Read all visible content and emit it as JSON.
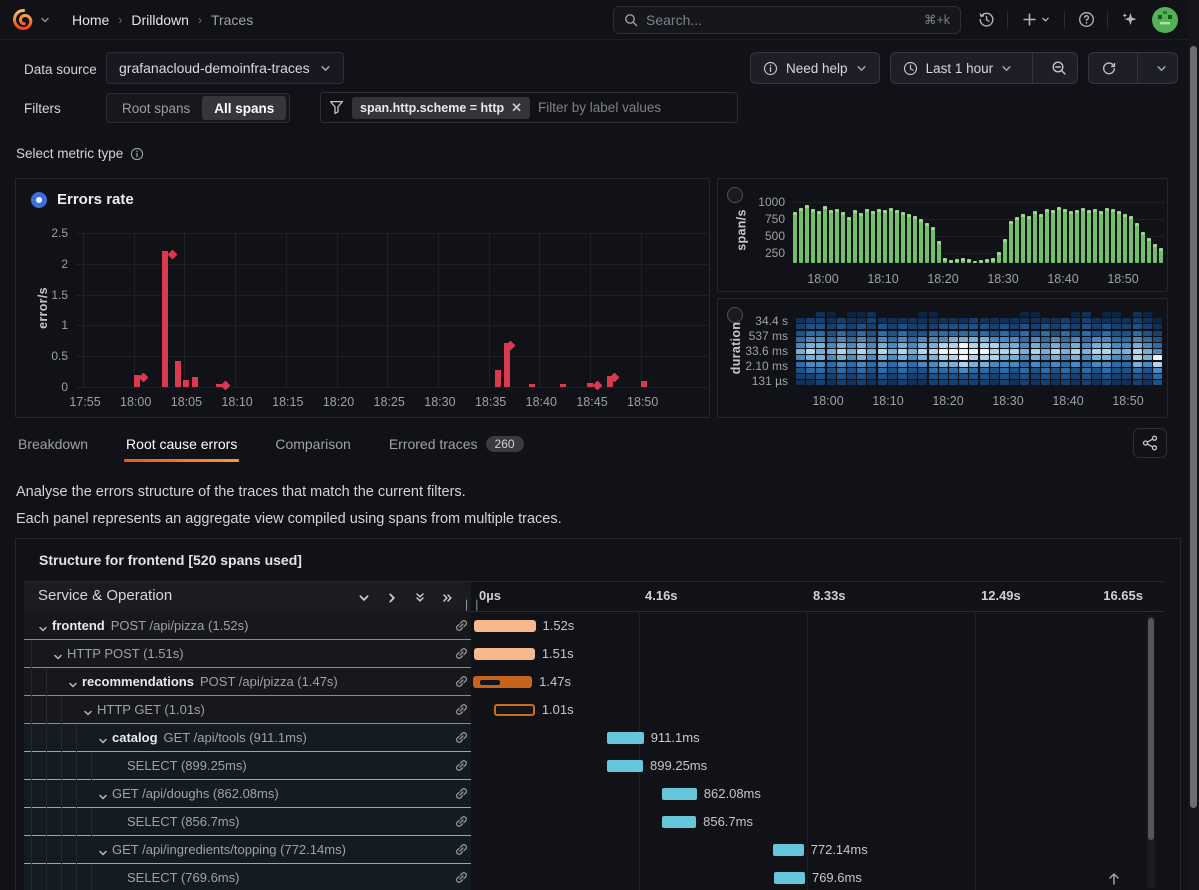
{
  "nav": {
    "breadcrumb": [
      "Home",
      "Drilldown",
      "Traces"
    ],
    "search_placeholder": "Search...",
    "search_shortcut": "⌘+k"
  },
  "controls": {
    "datasource_label": "Data source",
    "datasource_value": "grafanacloud-demoinfra-traces",
    "need_help_label": "Need help",
    "time_range_label": "Last 1 hour"
  },
  "filters": {
    "label": "Filters",
    "segments": [
      "Root spans",
      "All spans"
    ],
    "active_segment": "All spans",
    "chip": "span.http.scheme = http",
    "placeholder": "Filter by label values"
  },
  "metric_select": {
    "label": "Select metric type",
    "selected_option": "Errors rate"
  },
  "tabs": {
    "items": [
      {
        "label": "Breakdown",
        "active": false
      },
      {
        "label": "Root cause errors",
        "active": true
      },
      {
        "label": "Comparison",
        "active": false
      },
      {
        "label": "Errored traces",
        "active": false,
        "badge": "260"
      }
    ]
  },
  "description": {
    "line1": "Analyse the errors structure of the traces that match the current filters.",
    "line2": "Each panel represents an aggregate view compiled using spans from multiple traces."
  },
  "structure": {
    "title": "Structure for frontend [520 spans used]",
    "table_header": "Service & Operation",
    "timeline_ticks": [
      "0µs",
      "4.16s",
      "8.33s",
      "12.49s",
      "16.65s"
    ],
    "accent_colors": {
      "orange": "#cf7a33",
      "cyan": "#58bdd0"
    },
    "rows": [
      {
        "level": 0,
        "name": "frontend",
        "op": "POST /api/pizza (1.52s)",
        "chevron": true,
        "accent": "orange",
        "blue_bg": false,
        "bar": {
          "type": "salmon",
          "left": 0.005,
          "width": 0.091,
          "label": "1.52s"
        }
      },
      {
        "level": 1,
        "name": "",
        "op": "HTTP POST (1.51s)",
        "chevron": true,
        "accent": "orange",
        "blue_bg": false,
        "bar": {
          "type": "salmon",
          "left": 0.005,
          "width": 0.09,
          "label": "1.51s"
        }
      },
      {
        "level": 2,
        "name": "recommendations",
        "op": "POST /api/pizza (1.47s)",
        "chevron": true,
        "accent": "orange",
        "blue_bg": false,
        "bar": {
          "type": "orange-self",
          "left": 0.003,
          "width": 0.088,
          "label": "1.47s"
        }
      },
      {
        "level": 3,
        "name": "",
        "op": "HTTP GET (1.01s)",
        "chevron": true,
        "accent": "orange",
        "blue_bg": false,
        "bar": {
          "type": "orange-outline",
          "left": 0.034,
          "width": 0.061,
          "label": "1.01s"
        }
      },
      {
        "level": 4,
        "name": "catalog",
        "op": "GET /api/tools (911.1ms)",
        "chevron": true,
        "accent": "cyan",
        "blue_bg": true,
        "bar": {
          "type": "cyan",
          "left": 0.202,
          "width": 0.055,
          "label": "911.1ms"
        }
      },
      {
        "level": 5,
        "name": "",
        "op": "SELECT (899.25ms)",
        "chevron": false,
        "accent": "cyan",
        "blue_bg": true,
        "bar": {
          "type": "cyan",
          "left": 0.202,
          "width": 0.054,
          "label": "899.25ms"
        }
      },
      {
        "level": 4,
        "name": "",
        "op": "GET /api/doughs (862.08ms)",
        "chevron": true,
        "accent": "cyan",
        "blue_bg": true,
        "bar": {
          "type": "cyan",
          "left": 0.284,
          "width": 0.052,
          "label": "862.08ms"
        }
      },
      {
        "level": 5,
        "name": "",
        "op": "SELECT (856.7ms)",
        "chevron": false,
        "accent": "cyan",
        "blue_bg": true,
        "bar": {
          "type": "cyan",
          "left": 0.284,
          "width": 0.051,
          "label": "856.7ms"
        }
      },
      {
        "level": 4,
        "name": "",
        "op": "GET /api/ingredients/topping (772.14ms)",
        "chevron": true,
        "accent": "cyan",
        "blue_bg": true,
        "bar": {
          "type": "cyan",
          "left": 0.449,
          "width": 0.046,
          "label": "772.14ms"
        }
      },
      {
        "level": 5,
        "name": "",
        "op": "SELECT (769.6ms)",
        "chevron": false,
        "accent": "cyan",
        "blue_bg": true,
        "bar": {
          "type": "cyan",
          "left": 0.451,
          "width": 0.046,
          "label": "769.6ms"
        }
      }
    ],
    "bar_colors": {
      "salmon": "#f6b98f",
      "orange": "#c4641d",
      "orange_border": "#cf6a1d",
      "cyan": "#66c7da"
    }
  },
  "chart_data": [
    {
      "id": "errors_rate",
      "type": "bar",
      "title": "Errors rate",
      "ylabel": "error/s",
      "ylim": [
        0,
        2.5
      ],
      "yticks": [
        "0",
        "0.5",
        "1",
        "1.5",
        "2",
        "2.5"
      ],
      "xticks": [
        "17:55",
        "18:00",
        "18:05",
        "18:10",
        "18:15",
        "18:20",
        "18:25",
        "18:30",
        "18:35",
        "18:40",
        "18:45",
        "18:50"
      ],
      "color": "#d93a4e",
      "points_minutes_after_1755": [
        [
          5.3,
          0.2,
          "bar"
        ],
        [
          6.0,
          0.15,
          "diamond"
        ],
        [
          8.1,
          2.2,
          "bar"
        ],
        [
          8.8,
          2.15,
          "diamond"
        ],
        [
          9.4,
          0.42,
          "bar"
        ],
        [
          10.2,
          0.11,
          "bar"
        ],
        [
          11.0,
          0.16,
          "bar"
        ],
        [
          13.4,
          0.05,
          "bar"
        ],
        [
          14.1,
          0.03,
          "diamond"
        ],
        [
          40.9,
          0.27,
          "bar"
        ],
        [
          41.8,
          0.72,
          "bar"
        ],
        [
          42.2,
          0.68,
          "diamond"
        ],
        [
          44.3,
          0.05,
          "bar"
        ],
        [
          47.3,
          0.05,
          "bar"
        ],
        [
          50.0,
          0.06,
          "bar"
        ],
        [
          50.7,
          0.03,
          "diamond"
        ],
        [
          52.0,
          0.18,
          "bar"
        ],
        [
          52.4,
          0.16,
          "diamond"
        ],
        [
          55.3,
          0.09,
          "bar"
        ]
      ]
    },
    {
      "id": "spans_rate",
      "type": "bar",
      "ylabel": "span/s",
      "yticks": [
        "250",
        "500",
        "750",
        "1000"
      ],
      "xticks": [
        "18:00",
        "18:10",
        "18:20",
        "18:30",
        "18:40",
        "18:50"
      ],
      "color": "#73bf69",
      "color_tip": "#9ad78f",
      "bar_interval_min": 1,
      "values": [
        850,
        920,
        960,
        900,
        870,
        950,
        880,
        900,
        860,
        780,
        880,
        840,
        900,
        870,
        900,
        880,
        920,
        890,
        850,
        830,
        800,
        760,
        700,
        640,
        420,
        170,
        140,
        160,
        180,
        160,
        130,
        150,
        160,
        170,
        260,
        450,
        720,
        790,
        830,
        800,
        870,
        830,
        900,
        880,
        930,
        900,
        870,
        890,
        910,
        880,
        900,
        870,
        920,
        900,
        870,
        820,
        800,
        700,
        560,
        470,
        380,
        330
      ]
    },
    {
      "id": "duration_heatmap",
      "type": "heatmap",
      "ylabel": "duration",
      "ytick_labels": [
        "34.4 s",
        "537 ms",
        "33.6 ms",
        "2.10 ms",
        "131 µs"
      ],
      "xticks": [
        "18:00",
        "18:10",
        "18:20",
        "18:30",
        "18:40",
        "18:50"
      ],
      "palette": [
        "transparent",
        "#0d2440",
        "#123156",
        "#17406f",
        "#1d5288",
        "#2e6ba4",
        "#4a88bf",
        "#79aed5",
        "#b3d3ea",
        "#eef6fc"
      ],
      "rows": [
        "002101120000110000000011000120110210",
        "233232232222222223222222223232222321",
        "344343434343334444434343434343433432",
        "455454545454455555545454545454544543",
        "566565656565666777766656565656655654",
        "677676767676778898887767676767766765",
        "787787878787889999988878787878877876",
        "677676767676778898887767676767766879",
        "566565656565667787766656565656655768",
        "455454545454455565545454545454544546",
        "334343434343344444434343434343433435",
        "223232323232233333323232323232322324"
      ]
    }
  ]
}
